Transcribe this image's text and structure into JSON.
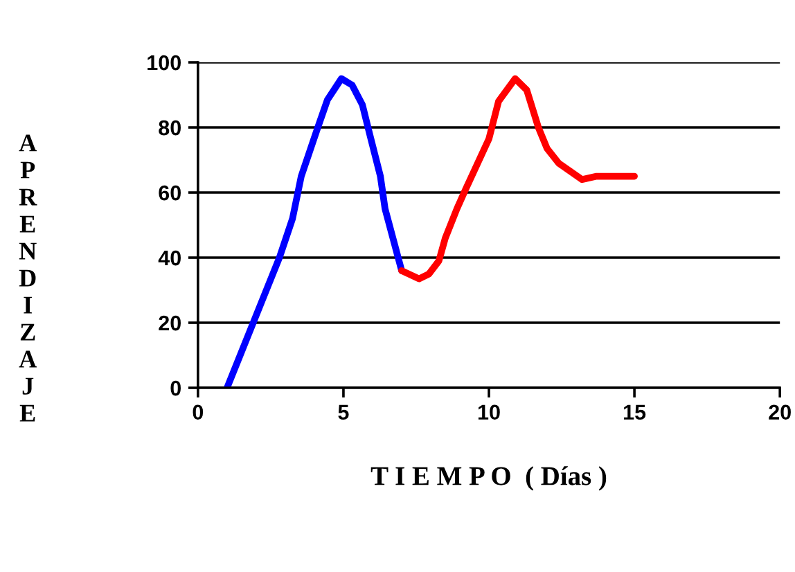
{
  "chart_data": {
    "type": "line",
    "xlabel": "T I E M P O  ( Días )",
    "ylabel": "APRENDIZAJE",
    "xlim": [
      0,
      20
    ],
    "xticks": [
      0,
      5,
      10,
      15,
      20
    ],
    "ylim": [
      0,
      100
    ],
    "yticks": [
      0,
      20,
      40,
      60,
      80,
      100
    ],
    "grid": "y",
    "marker": "none",
    "line_style": "solid",
    "series": [
      {
        "color": "#0000ff",
        "x": [
          1,
          1.9,
          2.8,
          3.25,
          3.55,
          4.1,
          4.45,
          4.93,
          5.3,
          5.65,
          5.9,
          6.27,
          6.43,
          7
        ],
        "values": [
          0,
          20,
          40,
          52,
          65,
          79.5,
          88.5,
          95,
          93,
          87,
          78,
          65,
          55,
          36
        ]
      },
      {
        "color": "#ff0000",
        "x": [
          7,
          7.6,
          7.94,
          8.28,
          8.5,
          8.9,
          9.2,
          10,
          10.33,
          10.9,
          11.3,
          11.7,
          12,
          12.4,
          13.2,
          13.7,
          15
        ],
        "values": [
          36,
          33.5,
          35,
          39,
          46,
          55,
          61,
          76.5,
          88,
          95,
          91.5,
          80,
          73.5,
          69,
          64,
          65,
          65
        ]
      }
    ]
  }
}
